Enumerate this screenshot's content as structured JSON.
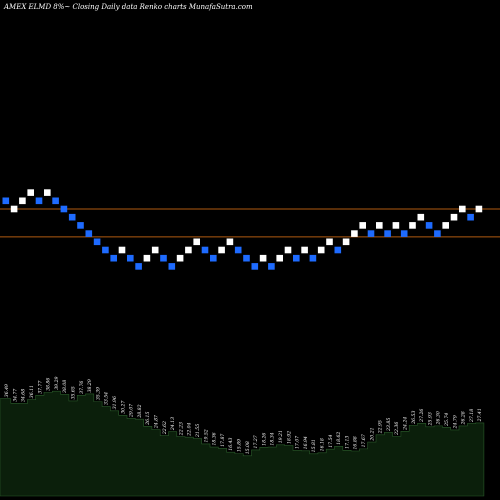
{
  "header": {
    "title": "AMEX  ELMD 8%~  Closing Daily data  Renko  charts MunafaSutra.com"
  },
  "colors": {
    "background": "#000000",
    "up_brick": "#ffffff",
    "down_brick": "#1e6bff",
    "reference_line": "#b05a10",
    "volume_fill": "#0b1f0b",
    "volume_edge": "#2a5a2a"
  },
  "chart_data": {
    "type": "renko",
    "brick_levels": [
      1,
      0,
      1,
      2,
      1,
      2,
      1,
      0,
      -1,
      -2,
      -3,
      -4,
      -5,
      -6,
      -5,
      -6,
      -7,
      -6,
      -5,
      -6,
      -7,
      -6,
      -5,
      -4,
      -5,
      -6,
      -5,
      -4,
      -5,
      -6,
      -7,
      -6,
      -7,
      -6,
      -5,
      -6,
      -5,
      -6,
      -5,
      -4,
      -5,
      -4,
      -3,
      -2,
      -3,
      -2,
      -3,
      -2,
      -3,
      -2,
      -1,
      -2,
      -3,
      -2,
      -1,
      0,
      -1,
      0
    ],
    "brick_colors": [
      "down",
      "up",
      "up",
      "up",
      "down",
      "up",
      "down",
      "down",
      "down",
      "down",
      "down",
      "down",
      "down",
      "down",
      "up",
      "down",
      "down",
      "up",
      "up",
      "down",
      "down",
      "up",
      "up",
      "up",
      "down",
      "down",
      "up",
      "up",
      "down",
      "down",
      "down",
      "up",
      "down",
      "up",
      "up",
      "down",
      "up",
      "down",
      "up",
      "up",
      "down",
      "up",
      "up",
      "up",
      "down",
      "up",
      "down",
      "up",
      "down",
      "up",
      "up",
      "down",
      "down",
      "up",
      "up",
      "up",
      "down",
      "up"
    ],
    "reference_lines": [
      0,
      -3.4
    ],
    "volume_labels": [
      "36.49",
      "34.77",
      "34.68",
      "36.11",
      "37.77",
      "38.86",
      "39.29",
      "38.08",
      "35.65",
      "37.76",
      "38.29",
      "35.39",
      "33.54",
      "31.96",
      "30.27",
      "29.07",
      "28.82",
      "26.15",
      "24.87",
      "22.62",
      "24.13",
      "22.23",
      "22.04",
      "21.55",
      "19.52",
      "18.36",
      "17.87",
      "16.43",
      "15.89",
      "15.08",
      "17.27",
      "18.26",
      "18.34",
      "19.21",
      "18.92",
      "17.07",
      "16.94",
      "15.81",
      "16.18",
      "17.54",
      "18.62",
      "17.13",
      "16.88",
      "17.67",
      "20.21",
      "22.95",
      "23.85",
      "22.36",
      "24.24",
      "26.53",
      "27.26",
      "25.93",
      "26.30",
      "25.74",
      "24.79",
      "26.28",
      "27.18",
      "27.41"
    ],
    "volume_values": [
      36.49,
      34.77,
      34.68,
      36.11,
      37.77,
      38.86,
      39.29,
      38.08,
      35.65,
      37.76,
      38.29,
      35.39,
      33.54,
      31.96,
      30.27,
      29.07,
      28.82,
      26.15,
      24.87,
      22.62,
      24.13,
      22.23,
      22.04,
      21.55,
      19.52,
      18.36,
      17.87,
      16.43,
      15.89,
      15.08,
      17.27,
      18.26,
      18.34,
      19.21,
      18.92,
      17.07,
      16.94,
      15.81,
      16.18,
      17.54,
      18.62,
      17.13,
      16.88,
      17.67,
      20.21,
      22.95,
      23.85,
      22.36,
      24.24,
      26.53,
      27.26,
      25.93,
      26.3,
      25.74,
      24.79,
      26.28,
      27.18,
      27.41
    ],
    "volume_range": [
      0,
      45
    ]
  }
}
